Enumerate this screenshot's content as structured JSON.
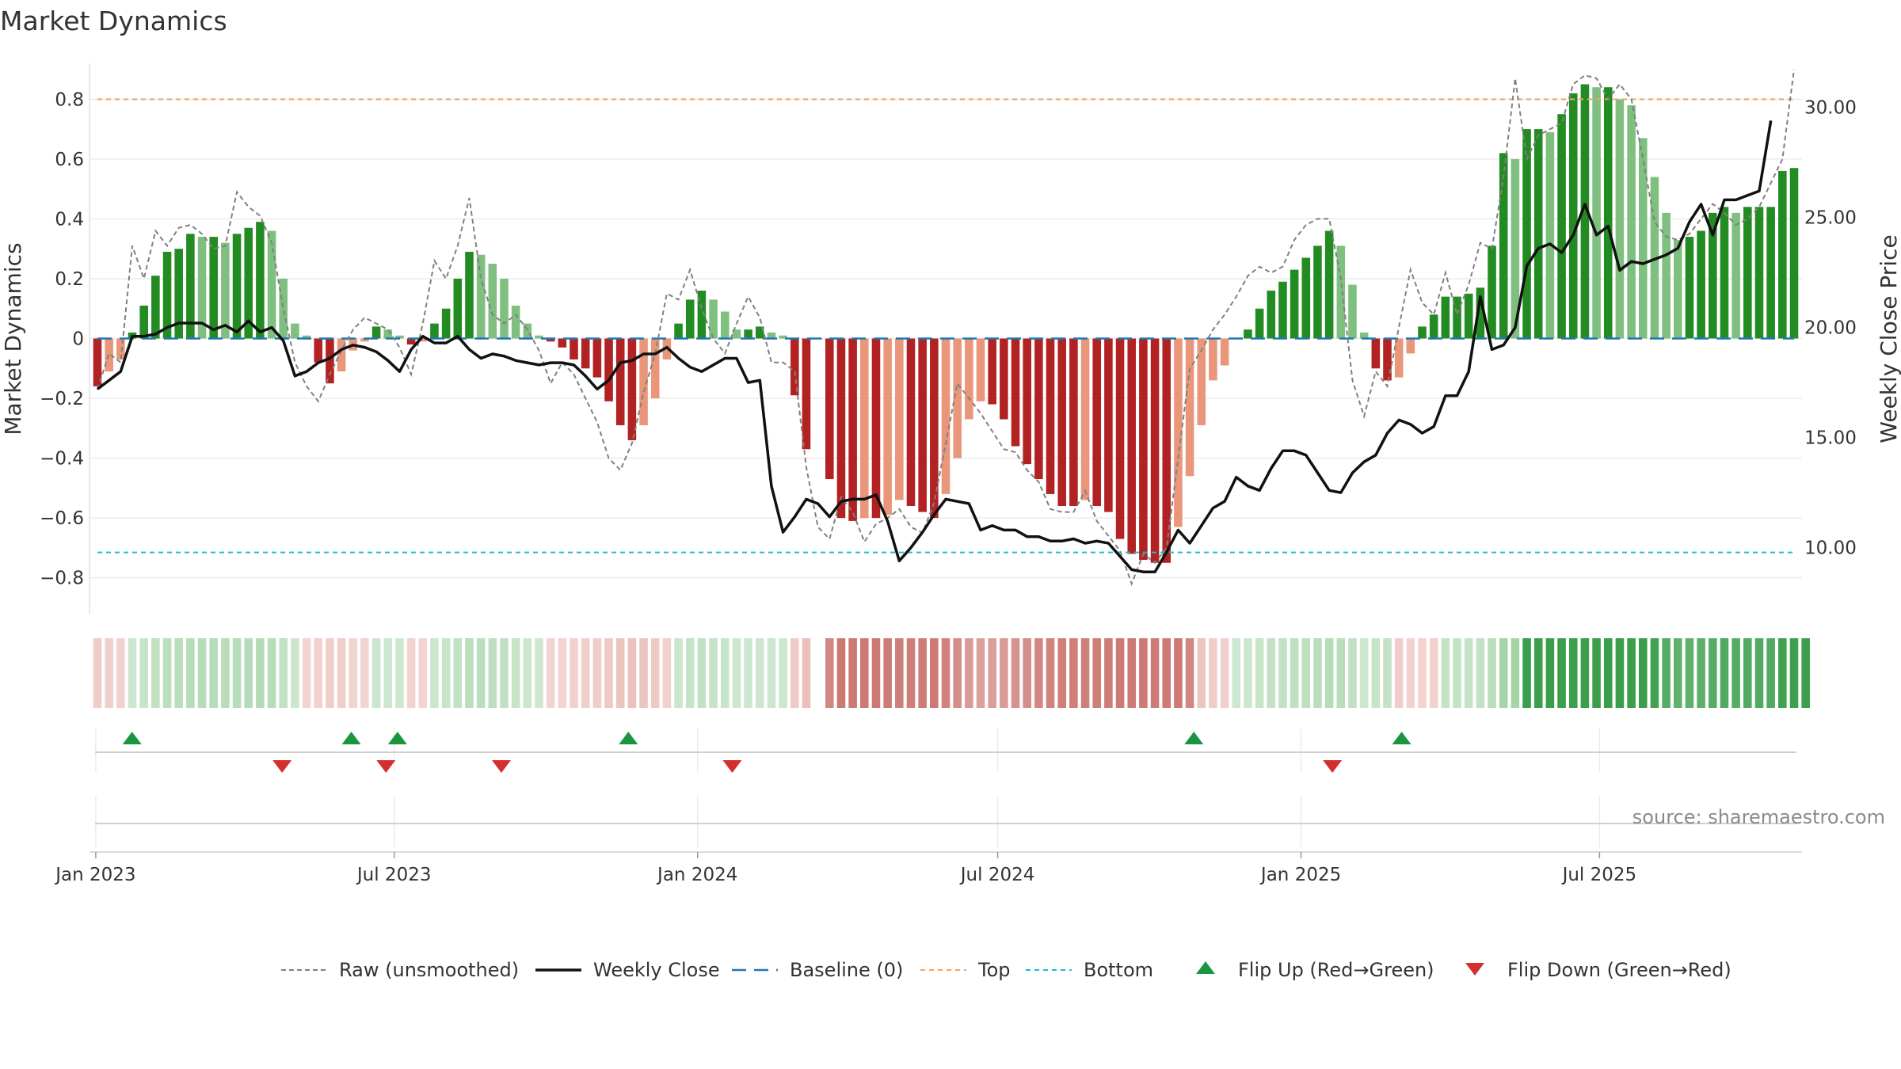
{
  "chart_data": {
    "type": "bar",
    "title": "Market Dynamics",
    "ylabel": "Market Dynamics",
    "ylabel_right": "Weekly Close Price",
    "ylim": [
      -0.92,
      0.92
    ],
    "ylim_right": [
      7.0,
      32.0
    ],
    "yticks": [
      -0.8,
      -0.6,
      -0.4,
      -0.2,
      0,
      0.2,
      0.4,
      0.6,
      0.8
    ],
    "yticks_right": [
      10,
      15,
      20,
      25,
      30
    ],
    "ytick_labels": [
      "−0.8",
      "−0.6",
      "−0.4",
      "−0.2",
      "0",
      "0.2",
      "0.4",
      "0.6",
      "0.8"
    ],
    "ytick_labels_right": [
      "10.00",
      "15.00",
      "20.00",
      "25.00",
      "30.00"
    ],
    "x_start": "2023-01-02",
    "x_end": "2025-10-27",
    "xticks": [
      {
        "date": "2023-01-01",
        "label": "Jan 2023"
      },
      {
        "date": "2023-07-01",
        "label": "Jul 2023"
      },
      {
        "date": "2024-01-01",
        "label": "Jan 2024"
      },
      {
        "date": "2024-07-01",
        "label": "Jul 2024"
      },
      {
        "date": "2025-01-01",
        "label": "Jan 2025"
      },
      {
        "date": "2025-07-01",
        "label": "Jul 2025"
      }
    ],
    "top_level": 0.8,
    "bottom_level": -0.715,
    "baseline": 0,
    "colors": {
      "strong_up": "#228b22",
      "weak_up": "#7fbf7f",
      "strong_down": "#b22222",
      "weak_down": "#e9967a",
      "raw": "#808080",
      "close": "#111111",
      "baseline": "#1f77b4",
      "top": "#f4a261",
      "bottom": "#17becf",
      "flip_up": "#1a9641",
      "flip_down": "#d32f2f"
    },
    "dynamics": [
      -0.16,
      -0.11,
      -0.07,
      0.02,
      0.11,
      0.21,
      0.29,
      0.3,
      0.35,
      0.34,
      0.34,
      0.32,
      0.35,
      0.37,
      0.39,
      0.36,
      0.2,
      0.05,
      0.01,
      -0.08,
      -0.15,
      -0.11,
      -0.04,
      -0.01,
      0.04,
      0.03,
      0.01,
      -0.02,
      -0.01,
      0.05,
      0.1,
      0.2,
      0.29,
      0.28,
      0.25,
      0.2,
      0.11,
      0.05,
      0.01,
      -0.01,
      -0.03,
      -0.07,
      -0.1,
      -0.13,
      -0.21,
      -0.29,
      -0.34,
      -0.29,
      -0.2,
      -0.07,
      0.05,
      0.13,
      0.16,
      0.13,
      0.09,
      0.03,
      0.03,
      0.04,
      0.02,
      0.01,
      -0.19,
      -0.37,
      0.0,
      -0.47,
      -0.6,
      -0.61,
      -0.6,
      -0.6,
      -0.59,
      -0.54,
      -0.56,
      -0.58,
      -0.6,
      -0.52,
      -0.4,
      -0.27,
      -0.21,
      -0.22,
      -0.27,
      -0.36,
      -0.42,
      -0.47,
      -0.52,
      -0.56,
      -0.56,
      -0.54,
      -0.56,
      -0.58,
      -0.67,
      -0.72,
      -0.74,
      -0.75,
      -0.75,
      -0.63,
      -0.46,
      -0.29,
      -0.14,
      -0.09,
      0.0,
      0.03,
      0.1,
      0.16,
      0.19,
      0.23,
      0.27,
      0.31,
      0.36,
      0.31,
      0.18,
      0.02,
      -0.1,
      -0.14,
      -0.13,
      -0.05,
      0.04,
      0.08,
      0.14,
      0.14,
      0.15,
      0.17,
      0.31,
      0.62,
      0.6,
      0.7,
      0.7,
      0.69,
      0.75,
      0.82,
      0.85,
      0.84,
      0.84,
      0.8,
      0.78,
      0.67,
      0.54,
      0.42,
      0.33,
      0.34,
      0.36,
      0.42,
      0.44,
      0.42,
      0.44,
      0.44,
      0.44,
      0.56,
      0.57
    ],
    "raw": [
      -0.17,
      -0.05,
      -0.08,
      0.31,
      0.2,
      0.36,
      0.31,
      0.37,
      0.38,
      0.35,
      0.3,
      0.31,
      0.49,
      0.44,
      0.41,
      0.32,
      0.1,
      -0.08,
      -0.16,
      -0.21,
      -0.12,
      -0.04,
      0.03,
      0.07,
      0.05,
      0.03,
      -0.03,
      -0.12,
      0.05,
      0.26,
      0.2,
      0.31,
      0.47,
      0.2,
      0.08,
      0.05,
      0.08,
      0.03,
      -0.04,
      -0.15,
      -0.08,
      -0.12,
      -0.2,
      -0.28,
      -0.4,
      -0.44,
      -0.35,
      -0.18,
      -0.05,
      0.15,
      0.13,
      0.23,
      0.1,
      0.0,
      -0.05,
      0.05,
      0.14,
      0.07,
      -0.08,
      -0.08,
      -0.11,
      -0.43,
      -0.63,
      -0.67,
      -0.53,
      -0.58,
      -0.68,
      -0.62,
      -0.6,
      -0.57,
      -0.63,
      -0.65,
      -0.55,
      -0.35,
      -0.15,
      -0.2,
      -0.25,
      -0.31,
      -0.37,
      -0.38,
      -0.44,
      -0.48,
      -0.57,
      -0.58,
      -0.58,
      -0.51,
      -0.61,
      -0.66,
      -0.71,
      -0.82,
      -0.72,
      -0.75,
      -0.7,
      -0.4,
      -0.1,
      -0.04,
      0.03,
      0.08,
      0.14,
      0.21,
      0.24,
      0.22,
      0.24,
      0.33,
      0.38,
      0.4,
      0.4,
      0.2,
      -0.14,
      -0.26,
      -0.11,
      -0.16,
      0.04,
      0.23,
      0.12,
      0.08,
      0.22,
      0.08,
      0.18,
      0.32,
      0.3,
      0.54,
      0.87,
      0.6,
      0.68,
      0.7,
      0.72,
      0.85,
      0.88,
      0.87,
      0.8,
      0.85,
      0.8,
      0.6,
      0.39,
      0.34,
      0.33,
      0.35,
      0.4,
      0.45,
      0.42,
      0.38,
      0.4,
      0.44,
      0.52,
      0.6,
      0.9
    ],
    "close": [
      17.2,
      17.6,
      18.0,
      19.6,
      19.6,
      19.7,
      20.0,
      20.2,
      20.2,
      20.2,
      19.9,
      20.1,
      19.8,
      20.3,
      19.8,
      20.0,
      19.4,
      17.8,
      18.0,
      18.4,
      18.6,
      19.0,
      19.2,
      19.1,
      18.9,
      18.5,
      18.0,
      19.0,
      19.6,
      19.3,
      19.3,
      19.6,
      19.0,
      18.6,
      18.8,
      18.7,
      18.5,
      18.4,
      18.3,
      18.4,
      18.4,
      18.3,
      17.8,
      17.2,
      17.6,
      18.4,
      18.5,
      18.8,
      18.8,
      19.1,
      18.6,
      18.2,
      18.0,
      18.3,
      18.6,
      18.6,
      17.5,
      17.6,
      12.8,
      10.7,
      11.4,
      12.2,
      12.0,
      11.4,
      12.1,
      12.2,
      12.2,
      12.4,
      11.2,
      9.4,
      10.0,
      10.7,
      11.5,
      12.2,
      12.1,
      12.0,
      10.8,
      11.0,
      10.8,
      10.8,
      10.5,
      10.5,
      10.3,
      10.3,
      10.4,
      10.2,
      10.3,
      10.2,
      9.6,
      9.0,
      8.9,
      8.9,
      9.8,
      10.8,
      10.2,
      11.0,
      11.8,
      12.1,
      13.2,
      12.8,
      12.6,
      13.6,
      14.4,
      14.4,
      14.2,
      13.4,
      12.6,
      12.5,
      13.4,
      13.9,
      14.2,
      15.2,
      15.8,
      15.6,
      15.2,
      15.5,
      16.9,
      16.9,
      18.0,
      21.4,
      19.0,
      19.2,
      20.0,
      22.8,
      23.6,
      23.8,
      23.4,
      24.2,
      25.6,
      24.2,
      24.6,
      22.6,
      23.0,
      22.9,
      23.1,
      23.3,
      23.6,
      24.8,
      25.6,
      24.2,
      25.8,
      25.8,
      26.0,
      26.2,
      29.4
    ],
    "bands": [
      -1,
      -1,
      -1,
      1,
      1,
      1,
      1,
      1,
      1,
      1,
      1,
      1,
      1,
      1,
      1,
      1,
      1,
      1,
      -1,
      -1,
      -1,
      -1,
      -1,
      -1,
      1,
      1,
      1,
      -1,
      -1,
      1,
      1,
      1,
      1,
      1,
      1,
      1,
      1,
      1,
      1,
      -1,
      -1,
      -1,
      -1,
      -1,
      -1,
      -1,
      -1,
      -1,
      -1,
      -1,
      1,
      1,
      1,
      1,
      1,
      1,
      1,
      1,
      1,
      1,
      -1,
      -1,
      0,
      -2,
      -2,
      -2,
      -2,
      -2,
      -2,
      -2,
      -2,
      -2,
      -2,
      -2,
      -2,
      -2,
      -2,
      -2,
      -2,
      -2,
      -2,
      -2,
      -2,
      -2,
      -2,
      -2,
      -2,
      -2,
      -2,
      -2,
      -2,
      -2,
      -2,
      -2,
      -2,
      -1,
      -1,
      -1,
      1,
      1,
      1,
      1,
      1,
      1,
      1,
      1,
      1,
      1,
      1,
      1,
      1,
      1,
      -1,
      -1,
      -1,
      -1,
      1,
      1,
      1,
      1,
      1,
      1,
      1,
      2,
      2,
      2,
      2,
      2,
      2,
      2,
      2,
      2,
      2,
      2,
      2,
      2,
      2,
      2,
      2,
      2,
      2,
      2,
      2,
      2,
      2,
      2,
      2,
      2
    ],
    "flips_up": [
      "2023-01-23",
      "2023-06-05",
      "2023-07-03",
      "2023-11-20",
      "2024-10-28",
      "2025-03-03"
    ],
    "flips_down": [
      "2023-04-24",
      "2023-06-26",
      "2023-09-04",
      "2024-01-22",
      "2025-01-20"
    ],
    "legend": [
      {
        "label": "Raw (unsmoothed)",
        "style": "raw"
      },
      {
        "label": "Weekly Close",
        "style": "close"
      },
      {
        "label": "Baseline (0)",
        "style": "baseline"
      },
      {
        "label": "Top",
        "style": "top"
      },
      {
        "label": "Bottom",
        "style": "bottom"
      },
      {
        "label": "Flip Up (Red→Green)",
        "style": "flip_up"
      },
      {
        "label": "Flip Down (Green→Red)",
        "style": "flip_down"
      }
    ],
    "source": "source: sharemaestro.com"
  }
}
